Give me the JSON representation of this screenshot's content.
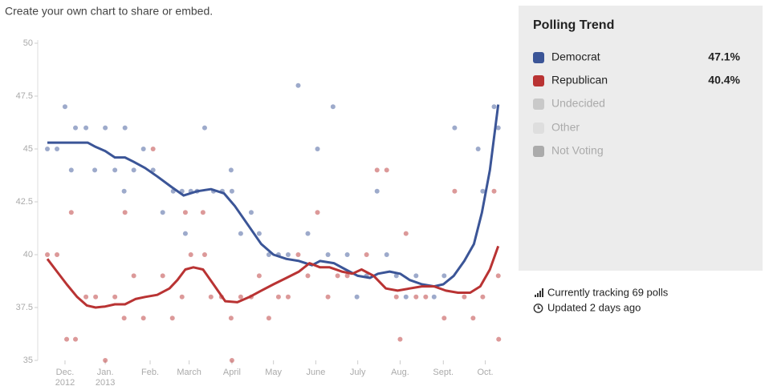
{
  "header": "Create your own chart to share or embed.",
  "chart_data": {
    "type": "line",
    "title": "Polling Trend",
    "xlim": [
      -0.65,
      10.45
    ],
    "xticks": [
      {
        "value": 0,
        "label": "Dec. 2012"
      },
      {
        "value": 0.96,
        "label": "Jan. 2013"
      },
      {
        "value": 2.03,
        "label": "Feb."
      },
      {
        "value": 2.96,
        "label": "March"
      },
      {
        "value": 3.98,
        "label": "April"
      },
      {
        "value": 4.97,
        "label": "May"
      },
      {
        "value": 5.98,
        "label": "June"
      },
      {
        "value": 6.98,
        "label": "July"
      },
      {
        "value": 7.99,
        "label": "Aug."
      },
      {
        "value": 9.02,
        "label": "Sept."
      },
      {
        "value": 10.02,
        "label": "Oct."
      }
    ],
    "ylim": [
      35,
      50
    ],
    "yticks": [
      35,
      37.5,
      40,
      42.5,
      45,
      47.5,
      50
    ],
    "series": [
      {
        "name": "Democrat",
        "color": "#3b5597",
        "latest": 47.1,
        "latest_label": "47.1%",
        "x": [
          -0.42,
          0.54,
          0.73,
          0.96,
          1.19,
          1.43,
          1.63,
          1.91,
          2.2,
          2.54,
          2.83,
          3.15,
          3.48,
          3.79,
          4.05,
          4.4,
          4.68,
          4.97,
          5.28,
          5.58,
          5.89,
          6.08,
          6.41,
          6.69,
          6.98,
          7.27,
          7.46,
          7.74,
          7.99,
          8.22,
          8.51,
          8.8,
          9.02,
          9.27,
          9.52,
          9.75,
          9.94,
          10.13,
          10.33
        ],
        "values": [
          45.3,
          45.3,
          45.1,
          44.9,
          44.6,
          44.6,
          44.4,
          44.1,
          43.7,
          43.2,
          42.8,
          43.0,
          43.1,
          42.9,
          42.3,
          41.3,
          40.5,
          40.0,
          39.8,
          39.7,
          39.5,
          39.7,
          39.6,
          39.3,
          39.0,
          38.9,
          39.1,
          39.2,
          39.1,
          38.8,
          38.6,
          38.5,
          38.6,
          39.0,
          39.7,
          40.5,
          42.0,
          44.0,
          47.1
        ],
        "points_x": [
          -0.42,
          -0.19,
          0,
          0.15,
          0.25,
          0.5,
          0.71,
          0.96,
          1.19,
          1.41,
          1.43,
          1.64,
          1.87,
          2.1,
          2.33,
          2.58,
          2.79,
          2.87,
          3.0,
          3.15,
          3.33,
          3.54,
          3.75,
          3.96,
          3.98,
          4.19,
          4.44,
          4.63,
          4.86,
          5.09,
          5.32,
          5.56,
          5.79,
          6.02,
          6.27,
          6.39,
          6.73,
          6.96,
          7.19,
          7.44,
          7.67,
          7.9,
          8.13,
          8.37,
          8.8,
          9.04,
          9.29,
          9.85,
          9.96,
          10.23,
          10.33
        ],
        "points_y": [
          45,
          45,
          47,
          44,
          46,
          46,
          44,
          46,
          44,
          43,
          46,
          44,
          45,
          44,
          42,
          43,
          43,
          41,
          43,
          43,
          46,
          43,
          43,
          44,
          43,
          41,
          42,
          41,
          40,
          40,
          40,
          48,
          41,
          45,
          40,
          47,
          40,
          38,
          39,
          43,
          40,
          39,
          38,
          39,
          38,
          39,
          46,
          45,
          43,
          47,
          46
        ]
      },
      {
        "name": "Republican",
        "color": "#b93333",
        "latest": 40.4,
        "latest_label": "40.4%",
        "x": [
          -0.42,
          -0.19,
          0.04,
          0.29,
          0.52,
          0.73,
          0.96,
          1.19,
          1.43,
          1.68,
          1.91,
          2.2,
          2.49,
          2.68,
          2.87,
          3.06,
          3.29,
          3.54,
          3.82,
          4.11,
          4.4,
          4.68,
          4.97,
          5.28,
          5.58,
          5.83,
          6.08,
          6.31,
          6.6,
          6.85,
          7.07,
          7.36,
          7.65,
          7.93,
          8.22,
          8.51,
          8.8,
          9.08,
          9.37,
          9.66,
          9.9,
          10.13,
          10.33
        ],
        "values": [
          39.8,
          39.2,
          38.6,
          38.0,
          37.6,
          37.5,
          37.55,
          37.65,
          37.65,
          37.9,
          38.0,
          38.1,
          38.4,
          38.8,
          39.3,
          39.4,
          39.3,
          38.6,
          37.8,
          37.75,
          38.0,
          38.3,
          38.6,
          38.9,
          39.2,
          39.6,
          39.4,
          39.4,
          39.2,
          39.1,
          39.3,
          39.0,
          38.4,
          38.3,
          38.4,
          38.5,
          38.5,
          38.3,
          38.2,
          38.2,
          38.5,
          39.3,
          40.4
        ],
        "points_x": [
          -0.42,
          -0.19,
          0.04,
          0.15,
          0.25,
          0.5,
          0.73,
          0.96,
          1.19,
          1.41,
          1.43,
          1.64,
          1.87,
          2.1,
          2.33,
          2.56,
          2.79,
          2.87,
          3.0,
          3.29,
          3.33,
          3.48,
          3.73,
          3.96,
          3.98,
          4.19,
          4.44,
          4.63,
          4.86,
          5.09,
          5.32,
          5.56,
          5.79,
          6.02,
          6.27,
          6.5,
          6.73,
          7.19,
          7.44,
          7.67,
          7.9,
          7.99,
          8.13,
          8.37,
          8.6,
          9.04,
          9.29,
          9.52,
          9.73,
          9.96,
          10.23,
          10.33,
          10.34
        ],
        "points_y": [
          40,
          40,
          36,
          42,
          36,
          38,
          38,
          35,
          38,
          37,
          42,
          39,
          37,
          45,
          39,
          37,
          38,
          42,
          40,
          42,
          40,
          38,
          38,
          37,
          35,
          38,
          38,
          39,
          37,
          38,
          38,
          40,
          39,
          42,
          38,
          39,
          39,
          40,
          44,
          44,
          38,
          36,
          41,
          38,
          38,
          37,
          43,
          38,
          37,
          38,
          43,
          39,
          36
        ]
      }
    ],
    "other_options": [
      {
        "name": "Undecided",
        "color": "#c9c9c9"
      },
      {
        "name": "Other",
        "color": "#dedede"
      },
      {
        "name": "Not Voting",
        "color": "#ababab"
      }
    ],
    "footer": [
      "Currently tracking 69 polls",
      "Updated 2 days ago"
    ]
  }
}
